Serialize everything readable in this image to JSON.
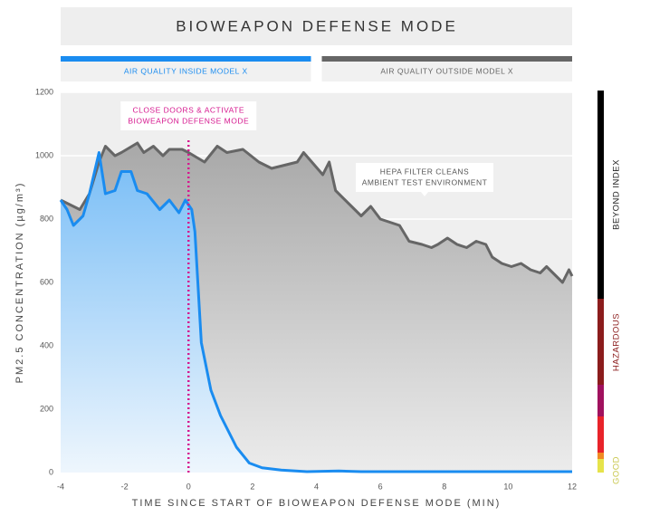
{
  "chart_data": {
    "type": "area",
    "title": "BIOWEAPON DEFENSE MODE",
    "xlabel": "TIME SINCE START OF BIOWEAPON DEFENSE MODE (MIN)",
    "ylabel": "PM2.5 CONCENTRATION (µg/m³)",
    "xlim": [
      -4,
      12
    ],
    "xticks": [
      -4,
      -2,
      0,
      2,
      4,
      6,
      8,
      10,
      12
    ],
    "ylim": [
      0,
      1200
    ],
    "yticks": [
      0,
      200,
      400,
      600,
      800,
      1000,
      1200
    ],
    "grid": true,
    "series": [
      {
        "name": "AIR QUALITY INSIDE MODEL X",
        "color": "#1a8cf0",
        "x": [
          -4,
          -3.8,
          -3.6,
          -3.3,
          -3.1,
          -2.8,
          -2.6,
          -2.3,
          -2.1,
          -1.8,
          -1.6,
          -1.3,
          -0.9,
          -0.6,
          -0.3,
          -0.1,
          0.1,
          0.2,
          0.4,
          0.7,
          1.0,
          1.5,
          1.9,
          2.3,
          2.9,
          3.7,
          4.7,
          5.4,
          12
        ],
        "values": [
          860,
          830,
          780,
          810,
          880,
          1010,
          880,
          890,
          950,
          950,
          890,
          880,
          830,
          860,
          820,
          860,
          830,
          760,
          410,
          260,
          180,
          80,
          30,
          15,
          8,
          3,
          5,
          3,
          3
        ]
      },
      {
        "name": "AIR QUALITY OUTSIDE MODEL X",
        "color": "#666666",
        "x": [
          -4,
          -3.4,
          -3.1,
          -2.8,
          -2.6,
          -2.3,
          -2.1,
          -1.6,
          -1.4,
          -1.1,
          -0.8,
          -0.6,
          -0.2,
          0,
          0.5,
          0.9,
          1.2,
          1.7,
          2.2,
          2.6,
          3.4,
          3.6,
          4.2,
          4.4,
          4.6,
          5.1,
          5.4,
          5.7,
          6.0,
          6.3,
          6.6,
          6.9,
          7.3,
          7.6,
          7.8,
          8.1,
          8.4,
          8.7,
          9.0,
          9.3,
          9.5,
          9.8,
          10.1,
          10.4,
          10.7,
          11.0,
          11.2,
          11.4,
          11.7,
          11.9,
          12
        ],
        "values": [
          860,
          830,
          880,
          980,
          1030,
          1000,
          1010,
          1040,
          1010,
          1030,
          1000,
          1020,
          1020,
          1010,
          980,
          1030,
          1010,
          1020,
          980,
          960,
          980,
          1010,
          940,
          980,
          890,
          840,
          810,
          840,
          800,
          790,
          780,
          730,
          720,
          710,
          720,
          740,
          720,
          710,
          730,
          720,
          680,
          660,
          650,
          660,
          640,
          630,
          650,
          630,
          600,
          640,
          620
        ]
      }
    ],
    "annotations": [
      {
        "x": 0,
        "text": [
          "CLOSE DOORS & ACTIVATE",
          "BIOWEAPON DEFENSE MODE"
        ]
      },
      {
        "text": [
          "HEPA FILTER CLEANS",
          "AMBIENT TEST ENVIRONMENT"
        ]
      }
    ],
    "scale_labels": [
      "BEYOND INDEX",
      "HAZARDOUS",
      "GOOD"
    ]
  }
}
